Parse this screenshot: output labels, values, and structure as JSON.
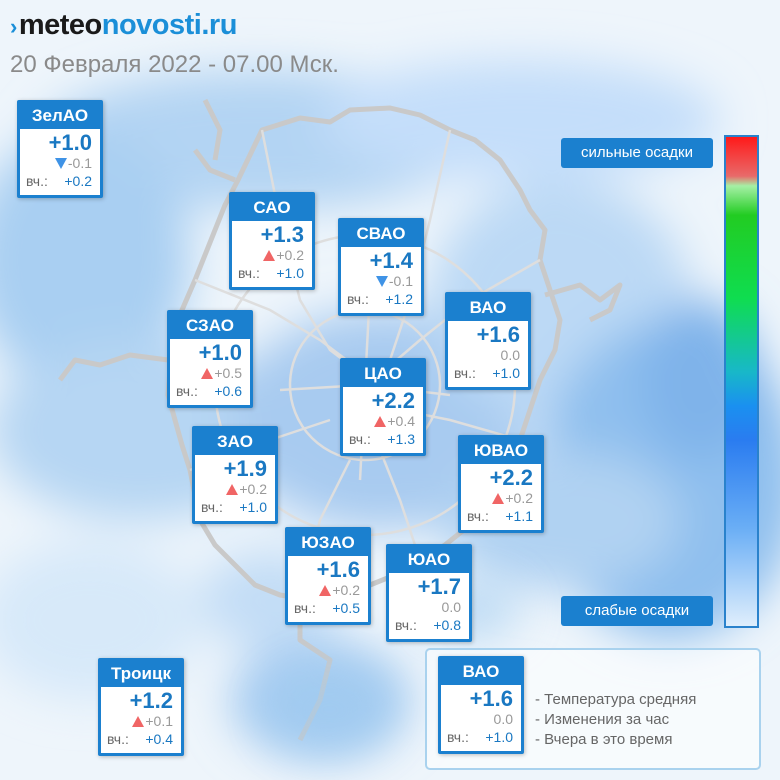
{
  "logo": {
    "mark": "›",
    "part1": "meteo",
    "part2": "novosti.ru"
  },
  "subtitle": "20 Февраля 2022 - 07.00 Мск.",
  "yesterday_label": "вч.:",
  "districts": [
    {
      "name": "ЗелАО",
      "temp": "+1.0",
      "dir": "down",
      "change": "-0.1",
      "yesterday": "+0.2"
    },
    {
      "name": "САО",
      "temp": "+1.3",
      "dir": "up",
      "change": "+0.2",
      "yesterday": "+1.0"
    },
    {
      "name": "СВАО",
      "temp": "+1.4",
      "dir": "down",
      "change": "-0.1",
      "yesterday": "+1.2"
    },
    {
      "name": "СЗАО",
      "temp": "+1.0",
      "dir": "up",
      "change": "+0.5",
      "yesterday": "+0.6"
    },
    {
      "name": "ВАО",
      "temp": "+1.6",
      "dir": "none",
      "change": "0.0",
      "yesterday": "+1.0"
    },
    {
      "name": "ЦАО",
      "temp": "+2.2",
      "dir": "up",
      "change": "+0.4",
      "yesterday": "+1.3"
    },
    {
      "name": "ЗАО",
      "temp": "+1.9",
      "dir": "up",
      "change": "+0.2",
      "yesterday": "+1.0"
    },
    {
      "name": "ЮВАО",
      "temp": "+2.2",
      "dir": "up",
      "change": "+0.2",
      "yesterday": "+1.1"
    },
    {
      "name": "ЮЗАО",
      "temp": "+1.6",
      "dir": "up",
      "change": "+0.2",
      "yesterday": "+0.5"
    },
    {
      "name": "ЮАО",
      "temp": "+1.7",
      "dir": "none",
      "change": "0.0",
      "yesterday": "+0.8"
    },
    {
      "name": "Троицк",
      "temp": "+1.2",
      "dir": "up",
      "change": "+0.1",
      "yesterday": "+0.4"
    }
  ],
  "precip_scale": {
    "high_label": "сильные осадки",
    "low_label": "слабые осадки",
    "colors": [
      "#ff1a1a",
      "#22cc22",
      "#1a90f0",
      "#dfeefc"
    ]
  },
  "legend": {
    "sample": {
      "name": "ВАО",
      "temp": "+1.6",
      "dir": "none",
      "change": "0.0",
      "yesterday": "+1.0"
    },
    "lines": [
      "- Температура средняя",
      "- Изменения за час",
      "- Вчера в это время"
    ]
  },
  "colors": {
    "accent": "#1b80cf",
    "up": "#f06565",
    "down": "#3f93e6"
  }
}
